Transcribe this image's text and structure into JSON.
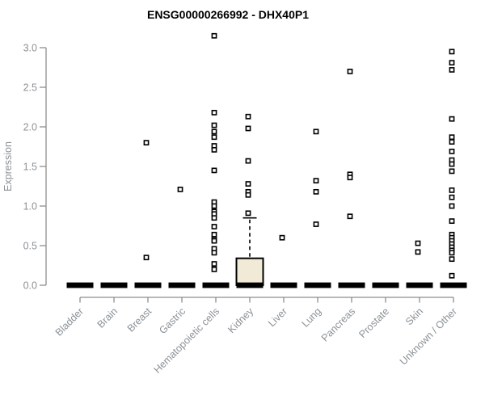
{
  "chart_data": {
    "type": "boxplot",
    "title": "ENSG00000266992 - DHX40P1",
    "ylabel": "Expression",
    "xlabel": "",
    "ylim": [
      0.0,
      3.0
    ],
    "ytick_labels": [
      "0.0",
      "0.5",
      "1.0",
      "1.5",
      "2.0",
      "2.5",
      "3.0"
    ],
    "ytick_values": [
      0.0,
      0.5,
      1.0,
      1.5,
      2.0,
      2.5,
      3.0
    ],
    "grid": false,
    "legend": false,
    "categories": [
      "Bladder",
      "Brain",
      "Breast",
      "Gastric",
      "Hematopoietic cells",
      "Kidney",
      "Liver",
      "Lung",
      "Pancreas",
      "Prostate",
      "Skin",
      "Unknown / Other"
    ],
    "series": [
      {
        "category": "Bladder",
        "q1": 0,
        "median": 0,
        "q3": 0,
        "whisker_high": 0,
        "outliers": []
      },
      {
        "category": "Brain",
        "q1": 0,
        "median": 0,
        "q3": 0,
        "whisker_high": 0,
        "outliers": []
      },
      {
        "category": "Breast",
        "q1": 0,
        "median": 0,
        "q3": 0,
        "whisker_high": 0,
        "outliers": [
          1.8,
          0.35
        ]
      },
      {
        "category": "Gastric",
        "q1": 0,
        "median": 0,
        "q3": 0,
        "whisker_high": 0,
        "outliers": [
          1.21
        ]
      },
      {
        "category": "Hematopoietic cells",
        "q1": 0,
        "median": 0,
        "q3": 0,
        "whisker_high": 0,
        "outliers": [
          3.15,
          2.18,
          2.02,
          1.94,
          1.87,
          1.76,
          1.71,
          1.45,
          1.05,
          1.0,
          0.93,
          0.9,
          0.85,
          0.74,
          0.64,
          0.58,
          0.56,
          0.46,
          0.41,
          0.27,
          0.2
        ]
      },
      {
        "category": "Kidney",
        "q1": 0,
        "median": 0,
        "q3": 0.34,
        "whisker_high": 0.85,
        "outliers": [
          2.13,
          1.98,
          1.57,
          1.28,
          1.18,
          1.14,
          0.91
        ]
      },
      {
        "category": "Liver",
        "q1": 0,
        "median": 0,
        "q3": 0,
        "whisker_high": 0,
        "outliers": [
          0.6
        ]
      },
      {
        "category": "Lung",
        "q1": 0,
        "median": 0,
        "q3": 0,
        "whisker_high": 0,
        "outliers": [
          1.94,
          1.32,
          1.18,
          0.77
        ]
      },
      {
        "category": "Pancreas",
        "q1": 0,
        "median": 0,
        "q3": 0,
        "whisker_high": 0,
        "outliers": [
          2.7,
          1.4,
          1.36,
          0.87
        ]
      },
      {
        "category": "Prostate",
        "q1": 0,
        "median": 0,
        "q3": 0,
        "whisker_high": 0,
        "outliers": []
      },
      {
        "category": "Skin",
        "q1": 0,
        "median": 0,
        "q3": 0,
        "whisker_high": 0,
        "outliers": [
          0.53,
          0.42
        ]
      },
      {
        "category": "Unknown / Other",
        "q1": 0,
        "median": 0,
        "q3": 0,
        "whisker_high": 0,
        "outliers": [
          2.95,
          2.81,
          2.72,
          2.1,
          1.87,
          1.81,
          1.69,
          1.58,
          1.53,
          1.44,
          1.2,
          1.11,
          1.0,
          0.81,
          0.64,
          0.6,
          0.56,
          0.52,
          0.48,
          0.44,
          0.41,
          0.33,
          0.12
        ]
      }
    ],
    "colors": {
      "box_fill": "#f0ead6",
      "box_stroke": "#000000",
      "zero_bar": "#000000",
      "axis_line": "#8e8e8e",
      "tick_label": "#8b9196",
      "title": "#000000",
      "point_fill": "#ffffff",
      "point_stroke": "#000000",
      "background": "#ffffff"
    }
  }
}
